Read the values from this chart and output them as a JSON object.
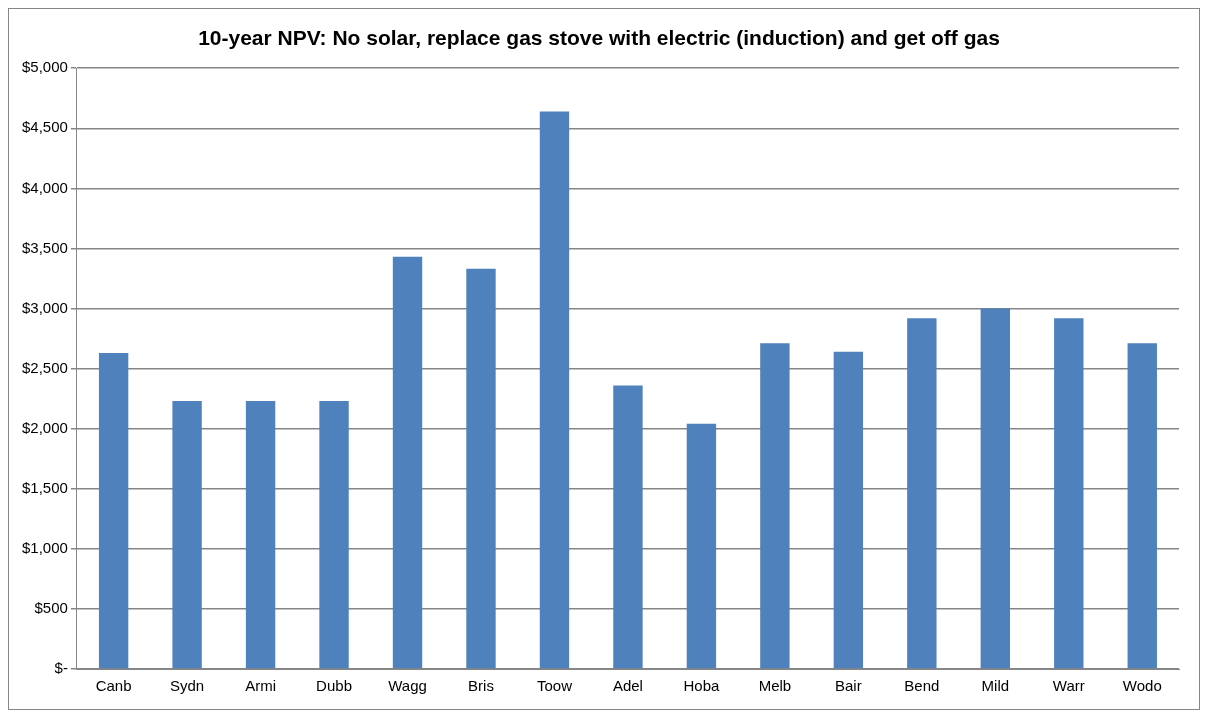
{
  "chart_data": {
    "type": "bar",
    "title": "10-year NPV: No solar, replace gas stove with electric (induction) and get off gas",
    "categories": [
      "Canb",
      "Sydn",
      "Armi",
      "Dubb",
      "Wagg",
      "Bris",
      "Toow",
      "Adel",
      "Hoba",
      "Melb",
      "Bair",
      "Bend",
      "Mild",
      "Warr",
      "Wodo"
    ],
    "values": [
      2630,
      2230,
      2230,
      2230,
      3430,
      3330,
      4640,
      2360,
      2040,
      2710,
      2640,
      2920,
      3000,
      2920,
      2710
    ],
    "color": "#4f81bd",
    "ylim": [
      0,
      5000
    ],
    "yticks": [
      {
        "value": 0,
        "label": "$-"
      },
      {
        "value": 500,
        "label": "$500"
      },
      {
        "value": 1000,
        "label": "$1,000"
      },
      {
        "value": 1500,
        "label": "$1,500"
      },
      {
        "value": 2000,
        "label": "$2,000"
      },
      {
        "value": 2500,
        "label": "$2,500"
      },
      {
        "value": 3000,
        "label": "$3,000"
      },
      {
        "value": 3500,
        "label": "$3,500"
      },
      {
        "value": 4000,
        "label": "$4,000"
      },
      {
        "value": 4500,
        "label": "$4,500"
      },
      {
        "value": 5000,
        "label": "$5,000"
      }
    ],
    "grid": "y",
    "legend": false
  }
}
